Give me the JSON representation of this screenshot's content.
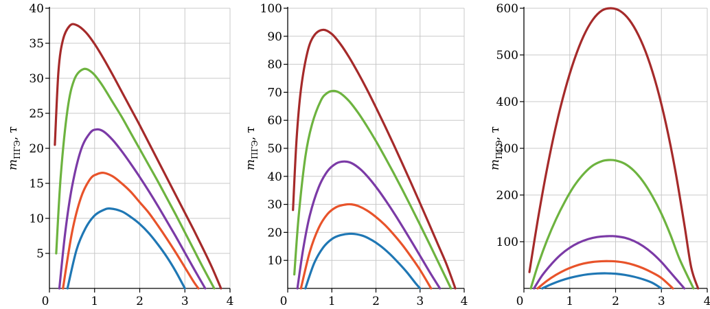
{
  "chart_data": [
    {
      "type": "line",
      "ylabel": "m_ПГЭ, т",
      "ylabel_main": "m",
      "ylabel_sub": "ПГЭ",
      "ylabel_unit": ", т",
      "xlim": [
        0,
        4
      ],
      "ylim": [
        0,
        40
      ],
      "xticks": [
        "0",
        "1",
        "2",
        "3",
        "4"
      ],
      "yticks": [
        "5",
        "10",
        "15",
        "20",
        "25",
        "30",
        "35",
        "40"
      ],
      "ytick_values": [
        5,
        10,
        15,
        20,
        25,
        30,
        35,
        40
      ],
      "grid": true,
      "series": [
        {
          "color": "#1f77b4",
          "x": [
            0.4,
            0.6,
            0.8,
            1.0,
            1.2,
            1.35,
            1.6,
            1.8,
            2.0,
            2.2,
            2.4,
            2.6,
            2.8,
            3.0
          ],
          "y": [
            0,
            5.5,
            8.6,
            10.4,
            11.2,
            11.4,
            11.0,
            10.2,
            9.2,
            7.9,
            6.3,
            4.5,
            2.4,
            0
          ]
        },
        {
          "color": "#e8532a",
          "x": [
            0.3,
            0.5,
            0.7,
            0.9,
            1.05,
            1.2,
            1.4,
            1.6,
            1.8,
            2.0,
            2.2,
            2.4,
            2.6,
            2.8,
            3.0,
            3.2,
            3.3
          ],
          "y": [
            0,
            8.0,
            13.0,
            15.6,
            16.3,
            16.5,
            16.0,
            15.0,
            13.8,
            12.3,
            10.8,
            9.0,
            7.1,
            5.1,
            3.0,
            0.9,
            0
          ]
        },
        {
          "color": "#7b3aa6",
          "x": [
            0.22,
            0.35,
            0.5,
            0.7,
            0.9,
            1.05,
            1.2,
            1.4,
            1.6,
            1.8,
            2.0,
            2.2,
            2.4,
            2.6,
            2.8,
            3.0,
            3.2,
            3.45
          ],
          "y": [
            0,
            8.0,
            14.5,
            19.8,
            22.2,
            22.7,
            22.4,
            21.2,
            19.6,
            17.8,
            15.9,
            13.9,
            11.8,
            9.6,
            7.4,
            5.1,
            2.8,
            0
          ]
        },
        {
          "color": "#6db33f",
          "x": [
            0.15,
            0.25,
            0.4,
            0.55,
            0.75,
            0.95,
            1.15,
            1.4,
            1.6,
            1.8,
            2.0,
            2.2,
            2.4,
            2.6,
            2.8,
            3.0,
            3.2,
            3.4,
            3.65
          ],
          "y": [
            5.0,
            16.0,
            25.5,
            29.8,
            31.3,
            30.8,
            29.2,
            26.6,
            24.5,
            22.2,
            19.9,
            17.6,
            15.3,
            12.9,
            10.5,
            8.0,
            5.5,
            3.0,
            0
          ]
        },
        {
          "color": "#a52a2a",
          "x": [
            0.12,
            0.2,
            0.3,
            0.45,
            0.6,
            0.8,
            1.0,
            1.2,
            1.4,
            1.6,
            1.8,
            2.0,
            2.2,
            2.4,
            2.6,
            2.8,
            3.0,
            3.2,
            3.4,
            3.6,
            3.8
          ],
          "y": [
            20.5,
            31.0,
            35.5,
            37.5,
            37.6,
            36.6,
            34.9,
            32.8,
            30.5,
            28.1,
            25.7,
            23.3,
            20.8,
            18.3,
            15.8,
            13.3,
            10.8,
            8.3,
            5.7,
            3.0,
            0
          ]
        }
      ]
    },
    {
      "type": "line",
      "ylabel": "m_ПГЭ, т",
      "ylabel_main": "m",
      "ylabel_sub": "ПГЭ",
      "ylabel_unit": ", т",
      "xlim": [
        0,
        4
      ],
      "ylim": [
        0,
        100
      ],
      "xticks": [
        "0",
        "1",
        "2",
        "3",
        "4"
      ],
      "yticks": [
        "10",
        "20",
        "30",
        "40",
        "50",
        "60",
        "70",
        "80",
        "90",
        "100"
      ],
      "ytick_values": [
        10,
        20,
        30,
        40,
        50,
        60,
        70,
        80,
        90,
        100
      ],
      "grid": true,
      "series": [
        {
          "color": "#1f77b4",
          "x": [
            0.4,
            0.6,
            0.8,
            1.0,
            1.2,
            1.45,
            1.7,
            1.9,
            2.1,
            2.3,
            2.5,
            2.7,
            2.9,
            3.0
          ],
          "y": [
            0,
            9.0,
            14.5,
            17.6,
            19.0,
            19.5,
            18.8,
            17.3,
            15.2,
            12.5,
            9.3,
            5.8,
            1.8,
            0
          ]
        },
        {
          "color": "#e8532a",
          "x": [
            0.3,
            0.5,
            0.7,
            0.9,
            1.1,
            1.3,
            1.45,
            1.6,
            1.8,
            2.0,
            2.2,
            2.4,
            2.6,
            2.8,
            3.0,
            3.25
          ],
          "y": [
            0,
            13.0,
            21.5,
            26.5,
            29.0,
            29.9,
            30.0,
            29.4,
            27.8,
            25.5,
            22.7,
            19.3,
            15.5,
            11.2,
            6.6,
            0
          ]
        },
        {
          "color": "#7b3aa6",
          "x": [
            0.22,
            0.35,
            0.5,
            0.7,
            0.9,
            1.1,
            1.28,
            1.45,
            1.65,
            1.85,
            2.05,
            2.25,
            2.45,
            2.65,
            2.85,
            3.05,
            3.25,
            3.45
          ],
          "y": [
            0,
            14.0,
            26.0,
            36.0,
            41.8,
            44.6,
            45.3,
            44.7,
            42.5,
            39.2,
            35.2,
            30.7,
            25.9,
            20.8,
            15.6,
            10.3,
            5.0,
            0
          ]
        },
        {
          "color": "#6db33f",
          "x": [
            0.15,
            0.25,
            0.4,
            0.55,
            0.75,
            0.9,
            1.05,
            1.2,
            1.4,
            1.6,
            1.8,
            2.0,
            2.2,
            2.4,
            2.6,
            2.8,
            3.0,
            3.2,
            3.4,
            3.7
          ],
          "y": [
            5.0,
            26.0,
            47.0,
            58.5,
            67.0,
            69.8,
            70.5,
            69.6,
            66.7,
            62.6,
            57.8,
            52.6,
            47.0,
            41.2,
            35.2,
            29.0,
            22.7,
            16.3,
            9.8,
            0
          ]
        },
        {
          "color": "#a52a2a",
          "x": [
            0.12,
            0.2,
            0.3,
            0.45,
            0.6,
            0.8,
            1.0,
            1.2,
            1.4,
            1.6,
            1.8,
            2.0,
            2.2,
            2.4,
            2.6,
            2.8,
            3.0,
            3.2,
            3.4,
            3.6,
            3.8
          ],
          "y": [
            28.0,
            53.0,
            71.0,
            84.5,
            90.3,
            92.3,
            90.8,
            87.1,
            82.3,
            76.8,
            70.9,
            64.6,
            58.1,
            51.4,
            44.5,
            37.5,
            30.4,
            23.2,
            15.9,
            8.6,
            0
          ]
        }
      ]
    },
    {
      "type": "line",
      "ylabel": "m_ПГЭ, т",
      "ylabel_main": "m",
      "ylabel_sub": "ПГЭ",
      "ylabel_unit": ", т",
      "xlim": [
        0,
        4
      ],
      "ylim": [
        0,
        600
      ],
      "xticks": [
        "0",
        "1",
        "2",
        "3",
        "4"
      ],
      "yticks": [
        "100",
        "200",
        "300",
        "400",
        "500",
        "600"
      ],
      "ytick_values": [
        100,
        200,
        300,
        400,
        500,
        600
      ],
      "grid": true,
      "series": [
        {
          "color": "#1f77b4",
          "x": [
            0.4,
            0.6,
            0.8,
            1.0,
            1.2,
            1.4,
            1.6,
            1.8,
            2.0,
            2.2,
            2.4,
            2.6,
            2.8,
            3.0
          ],
          "y": [
            0,
            9.0,
            16.5,
            22.5,
            27.0,
            30.2,
            31.9,
            32.3,
            31.4,
            29.0,
            25.0,
            19.5,
            12.0,
            0
          ]
        },
        {
          "color": "#e8532a",
          "x": [
            0.3,
            0.5,
            0.7,
            0.9,
            1.1,
            1.3,
            1.5,
            1.7,
            1.85,
            2.0,
            2.2,
            2.4,
            2.6,
            2.8,
            3.0,
            3.25
          ],
          "y": [
            0,
            16.0,
            29.0,
            39.5,
            47.5,
            53.2,
            56.6,
            58.2,
            58.4,
            57.8,
            55.2,
            50.3,
            43.2,
            33.8,
            22.2,
            0
          ]
        },
        {
          "color": "#7b3aa6",
          "x": [
            0.22,
            0.4,
            0.6,
            0.8,
            1.0,
            1.2,
            1.4,
            1.6,
            1.8,
            1.9,
            2.0,
            2.2,
            2.4,
            2.6,
            2.8,
            3.0,
            3.2,
            3.5
          ],
          "y": [
            0,
            28.0,
            52.0,
            72.0,
            87.0,
            98.0,
            105.5,
            110.0,
            111.8,
            112.0,
            111.6,
            108.5,
            101.5,
            90.5,
            75.5,
            56.5,
            34.0,
            0
          ]
        },
        {
          "color": "#6db33f",
          "x": [
            0.15,
            0.3,
            0.5,
            0.7,
            0.9,
            1.1,
            1.3,
            1.5,
            1.7,
            1.85,
            2.0,
            2.2,
            2.4,
            2.6,
            2.8,
            3.0,
            3.2,
            3.4,
            3.7
          ],
          "y": [
            0,
            48.0,
            102.0,
            148.0,
            187.0,
            220.0,
            245.0,
            263.0,
            272.5,
            275.0,
            274.0,
            267.0,
            252.0,
            229.0,
            198.0,
            160.0,
            114.0,
            62.0,
            0
          ]
        },
        {
          "color": "#a52a2a",
          "x": [
            0.12,
            0.3,
            0.5,
            0.7,
            0.9,
            1.1,
            1.3,
            1.5,
            1.7,
            1.9,
            2.1,
            2.3,
            2.5,
            2.7,
            2.9,
            3.1,
            3.3,
            3.5,
            3.65,
            3.8
          ],
          "y": [
            35.0,
            145.0,
            254.0,
            348.0,
            426.0,
            490.0,
            540.0,
            575.0,
            595.0,
            600.0,
            594.0,
            575.0,
            542.0,
            495.0,
            432.0,
            352.0,
            254.0,
            137.0,
            45.0,
            0
          ]
        }
      ]
    }
  ]
}
